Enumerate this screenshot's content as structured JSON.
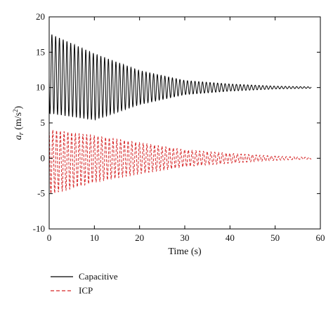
{
  "chart_data": {
    "type": "line",
    "xlabel": "Time (s)",
    "ylabel": {
      "symbol": "a",
      "subscript": "r",
      "units_prefix": " (m/s",
      "units_sup": "2",
      "units_suffix": ")"
    },
    "xlim": [
      0,
      60
    ],
    "ylim": [
      -10,
      20
    ],
    "xticks": [
      "0",
      "10",
      "20",
      "30",
      "40",
      "50",
      "60"
    ],
    "yticks": [
      "-10",
      "-5",
      "0",
      "5",
      "10",
      "15",
      "20"
    ],
    "grid": false,
    "legend_position": "below the plot, left",
    "series": [
      {
        "name": "Capacitive",
        "color": "#000000",
        "style": "solid",
        "signal": "damped oscillation",
        "x_start": 0,
        "x_end": 58,
        "center": 10,
        "samples": [
          {
            "t": 0.6,
            "max": 17.5,
            "min": 6.3
          },
          {
            "t": 10,
            "max": 14.8,
            "min": 5.4
          },
          {
            "t": 20,
            "max": 12.4,
            "min": 7.6
          },
          {
            "t": 30,
            "max": 11.0,
            "min": 9.0
          },
          {
            "t": 40,
            "max": 10.5,
            "min": 9.5
          },
          {
            "t": 50,
            "max": 10.2,
            "min": 9.8
          },
          {
            "t": 58,
            "max": 10.1,
            "min": 9.9
          }
        ],
        "cycles_per_second": 1.2
      },
      {
        "name": "ICP",
        "color": "#d62728",
        "style": "dashed",
        "signal": "damped oscillation",
        "x_start": 0,
        "x_end": 58,
        "center": 0,
        "samples": [
          {
            "t": 0.8,
            "max": 4.0,
            "min": -5.0
          },
          {
            "t": 10,
            "max": 3.2,
            "min": -3.4
          },
          {
            "t": 20,
            "max": 2.2,
            "min": -2.2
          },
          {
            "t": 30,
            "max": 1.2,
            "min": -1.2
          },
          {
            "t": 40,
            "max": 0.7,
            "min": -0.7
          },
          {
            "t": 50,
            "max": 0.3,
            "min": -0.3
          },
          {
            "t": 58,
            "max": 0.1,
            "min": -0.1
          }
        ],
        "cycles_per_second": 1.2
      }
    ]
  }
}
